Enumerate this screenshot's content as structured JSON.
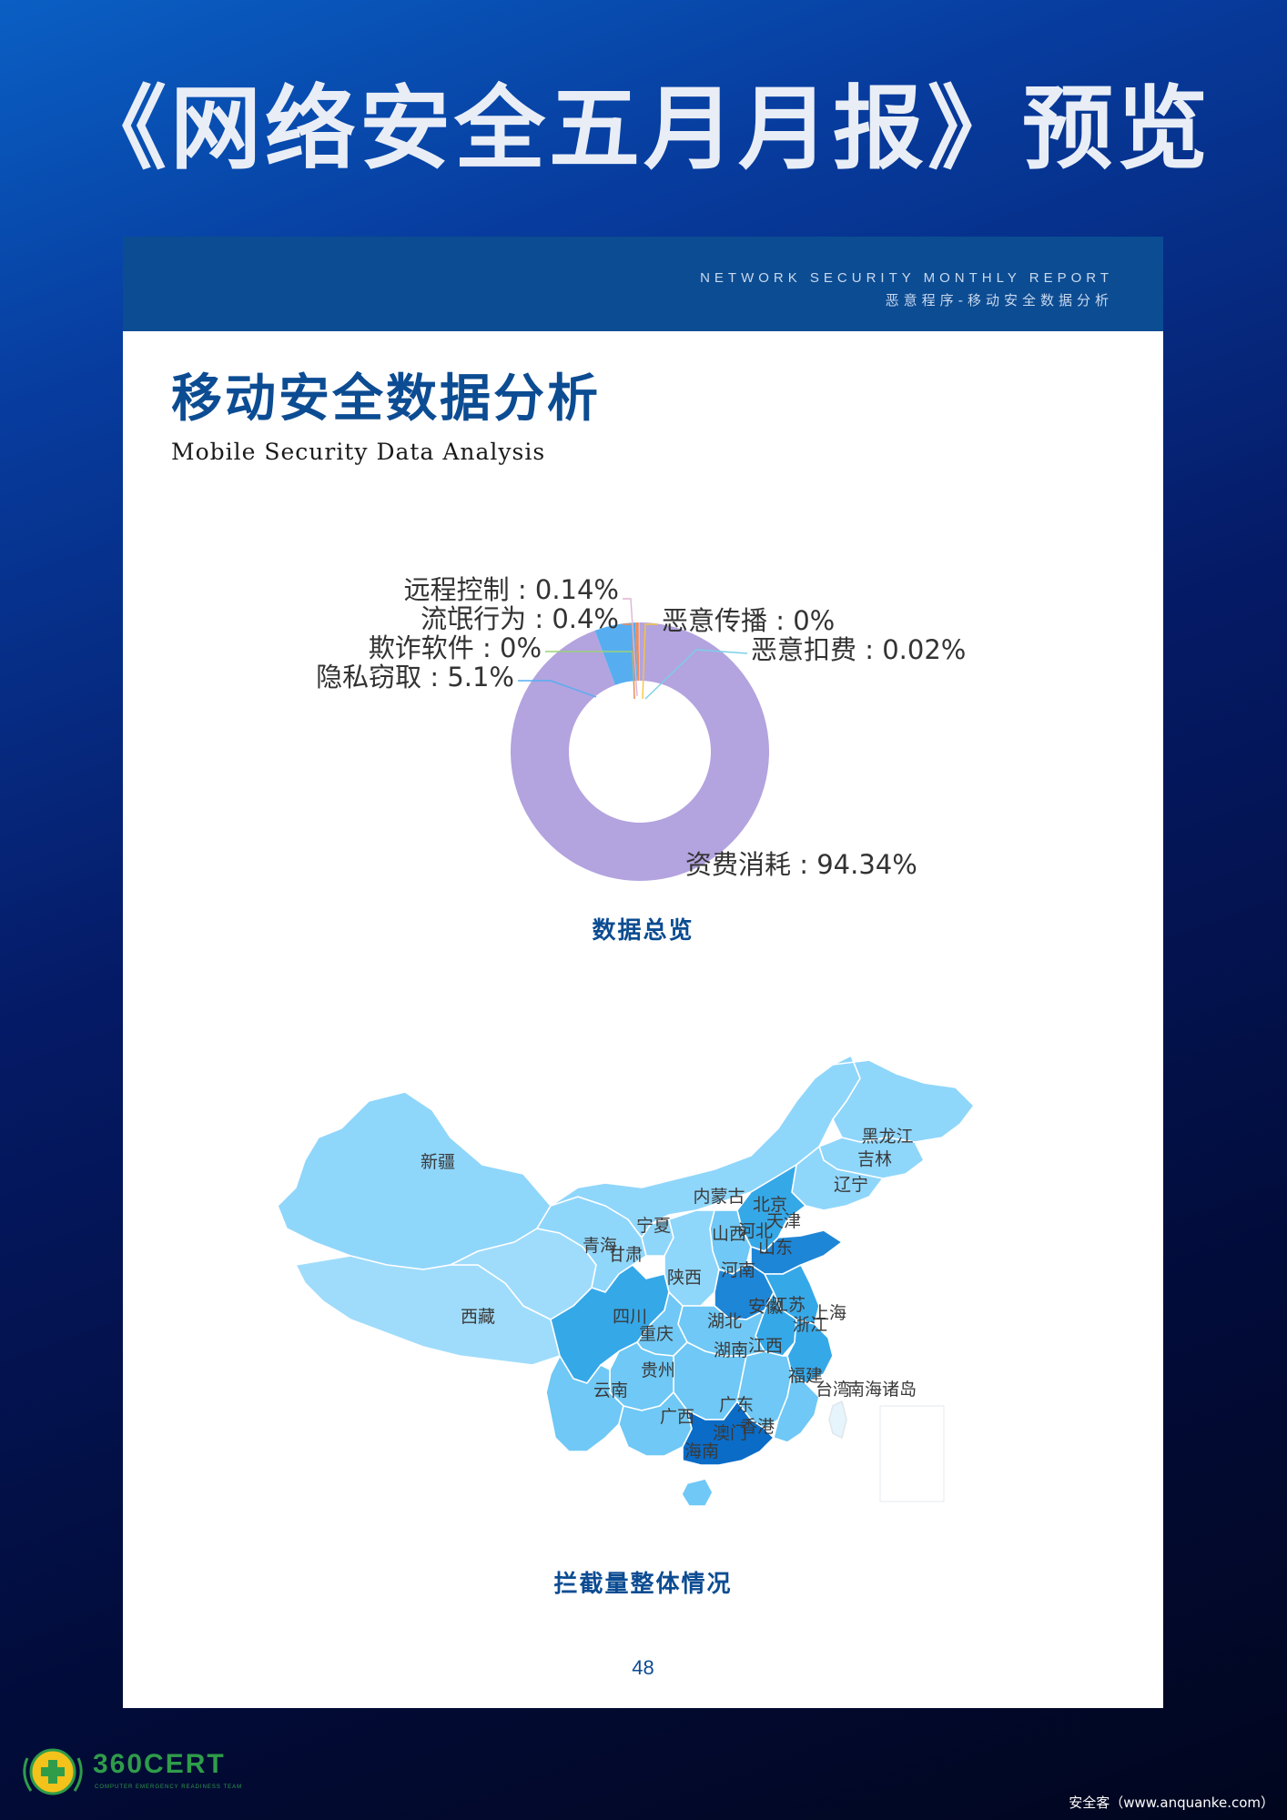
{
  "page_title": "《网络安全五月月报》预览",
  "header": {
    "en": "NETWORK SECURITY MONTHLY REPORT",
    "zh": "恶意程序-移动安全数据分析"
  },
  "section": {
    "title": "移动安全数据分析",
    "subtitle": "Mobile Security Data Analysis"
  },
  "donut_caption": "数据总览",
  "map_caption": "拦截量整体情况",
  "page_number": "48",
  "logo": {
    "text": "360CERT",
    "sub": "COMPUTER EMERGENCY READINESS TEAM"
  },
  "watermark": "安全客（www.anquanke.com）",
  "colors": {
    "brand": "#0c4c92",
    "slice_main": "#b3a3df",
    "slice_privacy": "#56aef0",
    "map_light": "#8fd6fb",
    "map_mid": "#6fc8f5",
    "map_dark": "#35a8e8",
    "map_darker": "#1e86d6",
    "map_darkest": "#0a6cc7"
  },
  "chart_data": [
    {
      "type": "pie",
      "title": "数据总览",
      "slices": [
        {
          "name": "资费消耗",
          "value": 94.34,
          "label": "资费消耗 : 94.34%"
        },
        {
          "name": "隐私窃取",
          "value": 5.1,
          "label": "隐私窃取 : 5.1%"
        },
        {
          "name": "欺诈软件",
          "value": 0,
          "label": "欺诈软件 : 0%"
        },
        {
          "name": "流氓行为",
          "value": 0.4,
          "label": "流氓行为 : 0.4%"
        },
        {
          "name": "远程控制",
          "value": 0.14,
          "label": "远程控制 : 0.14%"
        },
        {
          "name": "恶意传播",
          "value": 0,
          "label": "恶意传播 : 0%"
        },
        {
          "name": "恶意扣费",
          "value": 0.02,
          "label": "恶意扣费 : 0.02%"
        }
      ]
    }
  ],
  "map": {
    "title": "拦截量整体情况",
    "provinces": [
      "新疆",
      "西藏",
      "青海",
      "甘肃",
      "宁夏",
      "内蒙古",
      "黑龙江",
      "吉林",
      "辽宁",
      "北京",
      "天津",
      "河北",
      "山西",
      "山东",
      "河南",
      "陕西",
      "四川",
      "重庆",
      "湖北",
      "安徽",
      "江苏",
      "上海",
      "浙江",
      "湖南",
      "江西",
      "贵州",
      "云南",
      "福建",
      "台湾",
      "南海诸岛",
      "广东",
      "广西",
      "香港",
      "澳门",
      "海南"
    ]
  }
}
